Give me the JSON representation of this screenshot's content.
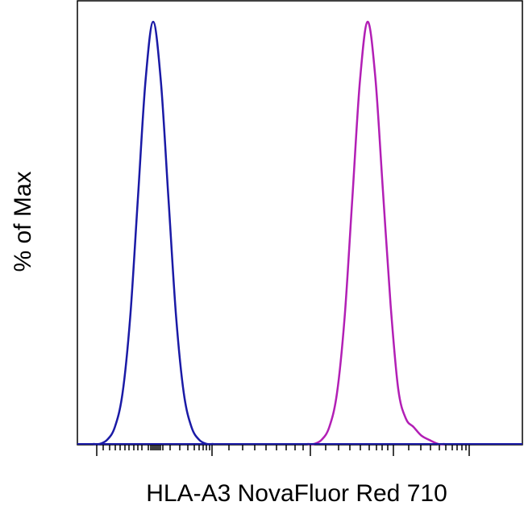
{
  "chart_data": {
    "type": "area",
    "title": "",
    "xlabel": "HLA-A3 NovaFluor Red 710",
    "ylabel": "% of Max",
    "x_scale": "biexponential",
    "y_range": [
      0,
      100
    ],
    "grid": false,
    "legend": "none",
    "tick_labels_shown": false,
    "series": [
      {
        "color": "#1a1aa6",
        "x": [
          -3.5,
          -3.0,
          -2.5,
          -2.0,
          -1.5,
          -1.0,
          -0.5,
          0.0,
          0.5,
          1.0,
          1.5,
          2.0,
          2.5,
          3.0,
          3.5
        ],
        "y": [
          0,
          1,
          4,
          12,
          30,
          58,
          86,
          100,
          86,
          58,
          30,
          12,
          4,
          1,
          0
        ]
      },
      {
        "color": "#b21fb5",
        "x": [
          -3.5,
          -3.0,
          -2.5,
          -2.0,
          -1.5,
          -1.0,
          -0.5,
          0.0,
          0.5,
          1.0,
          1.5,
          2.0,
          2.5,
          3.0,
          3.5,
          4.0,
          4.6
        ],
        "y": [
          0,
          1,
          4,
          12,
          30,
          58,
          86,
          100,
          87,
          60,
          33,
          13,
          6,
          4,
          2,
          1,
          0
        ]
      }
    ]
  }
}
